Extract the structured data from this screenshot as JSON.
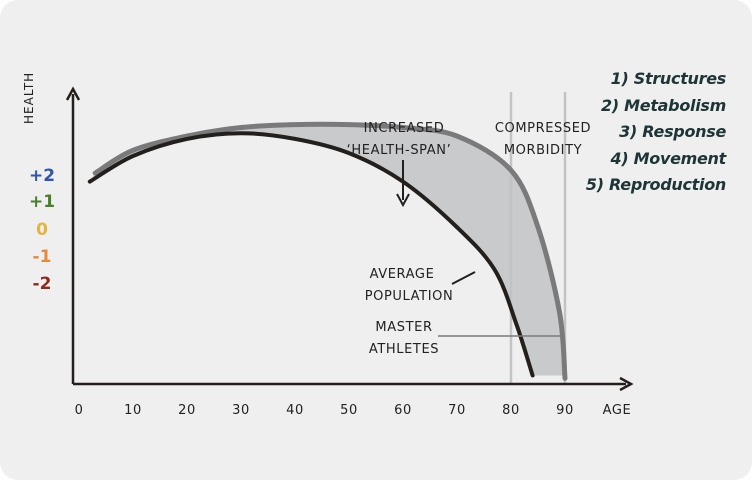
{
  "chart_data": {
    "type": "line",
    "title": "",
    "xlabel": "AGE",
    "ylabel": "HEALTH",
    "xlim": [
      0,
      100
    ],
    "ylim": [
      0,
      1
    ],
    "x_ticks": [
      "0",
      "10",
      "20",
      "30",
      "40",
      "50",
      "60",
      "70",
      "80",
      "90"
    ],
    "y_levels": [
      {
        "label": "+2",
        "color": "#2f55a8"
      },
      {
        "label": "+1",
        "color": "#4a7f2a"
      },
      {
        "label": "0",
        "color": "#e3b440"
      },
      {
        "label": "-1",
        "color": "#e58a3a"
      },
      {
        "label": "-2",
        "color": "#8e2a1c"
      }
    ],
    "series": [
      {
        "label": "AVERAGE POPULATION",
        "color": "#231f1c",
        "x": [
          2,
          10,
          20,
          30,
          40,
          50,
          60,
          70,
          77,
          81,
          84
        ],
        "y": [
          0.71,
          0.8,
          0.86,
          0.88,
          0.86,
          0.81,
          0.71,
          0.55,
          0.4,
          0.21,
          0.03
        ]
      },
      {
        "label": "MASTER ATHLETES",
        "color": "#7a7a7c",
        "x": [
          3,
          10,
          20,
          30,
          40,
          50,
          60,
          70,
          80,
          85,
          89,
          90
        ],
        "y": [
          0.74,
          0.82,
          0.87,
          0.9,
          0.91,
          0.91,
          0.9,
          0.87,
          0.75,
          0.55,
          0.25,
          0.02
        ]
      }
    ],
    "vertical_lines": [
      80,
      90
    ],
    "annotations": {
      "health_span": [
        "INCREASED",
        "‘HEALTH-SPAN’"
      ],
      "compressed": [
        "COMPRESSED",
        "MORBIDITY"
      ],
      "average": [
        "AVERAGE",
        "POPULATION"
      ],
      "master": [
        "MASTER",
        "ATHLETES"
      ]
    },
    "legend": [
      "1) Structures",
      "2) Metabolism",
      "3) Response",
      "4) Movement",
      "5) Reproduction"
    ],
    "grid": false
  }
}
